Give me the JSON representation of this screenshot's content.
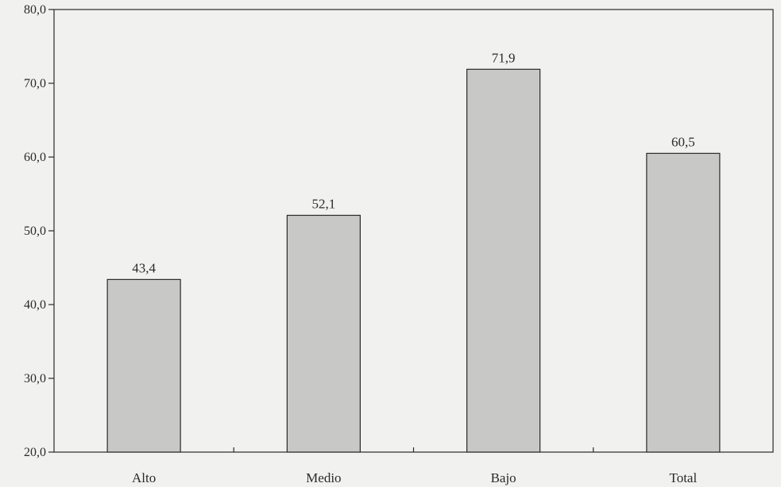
{
  "chart_data": {
    "type": "bar",
    "title": "",
    "xlabel": "",
    "ylabel": "",
    "categories": [
      "Alto",
      "Medio",
      "Bajo",
      "Total"
    ],
    "values": [
      43.4,
      52.1,
      71.9,
      60.5
    ],
    "value_labels": [
      "43,4",
      "52,1",
      "71,9",
      "60,5"
    ],
    "ylim": [
      20,
      80
    ],
    "yticks": [
      20,
      30,
      40,
      50,
      60,
      70,
      80
    ],
    "ytick_labels": [
      "20,0",
      "30,0",
      "40,0",
      "50,0",
      "60,0",
      "70,0",
      "80,0"
    ],
    "grid": false,
    "legend": "none",
    "colors": {
      "bar_fill": "#c8c8c6",
      "bar_stroke": "#2a2a2a",
      "axis": "#2a2a2a",
      "plot_background": "#f1f1ef"
    }
  }
}
